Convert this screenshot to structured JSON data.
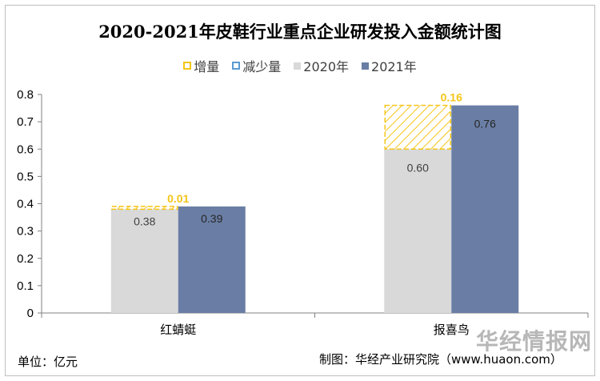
{
  "chart_data": {
    "type": "bar",
    "title": "2020-2021年皮鞋行业重点企业研发投入金额统计图",
    "categories": [
      "红蜻蜓",
      "报喜鸟"
    ],
    "series": [
      {
        "name": "2020年",
        "values": [
          0.38,
          0.6
        ],
        "color": "#d9d9d9"
      },
      {
        "name": "2021年",
        "values": [
          0.39,
          0.76
        ],
        "color": "#6a7ea5"
      }
    ],
    "change_series": [
      {
        "name": "增量",
        "values": [
          0.01,
          0.16
        ],
        "color": "#f5c518"
      },
      {
        "name": "减少量",
        "values": [
          null,
          null
        ],
        "color": "#5b9bd5"
      }
    ],
    "data_labels_2020": [
      "0.38",
      "0.60"
    ],
    "data_labels_2021": [
      "0.39",
      "0.76"
    ],
    "data_labels_change": [
      "0.01",
      "0.16"
    ],
    "ylim": [
      0,
      0.8
    ],
    "yticks": [
      "0",
      "0.1",
      "0.2",
      "0.3",
      "0.4",
      "0.5",
      "0.6",
      "0.7",
      "0.8"
    ],
    "ytick_values": [
      0,
      0.1,
      0.2,
      0.3,
      0.4,
      0.5,
      0.6,
      0.7,
      0.8
    ],
    "grid": false,
    "legend_position": "top"
  },
  "legend": [
    "增量",
    "减少量",
    "2020年",
    "2021年"
  ],
  "footer": {
    "unit": "单位：亿元",
    "source": "制图：华经产业研究院（www.huaon.com）"
  },
  "watermark": "华经情报网"
}
